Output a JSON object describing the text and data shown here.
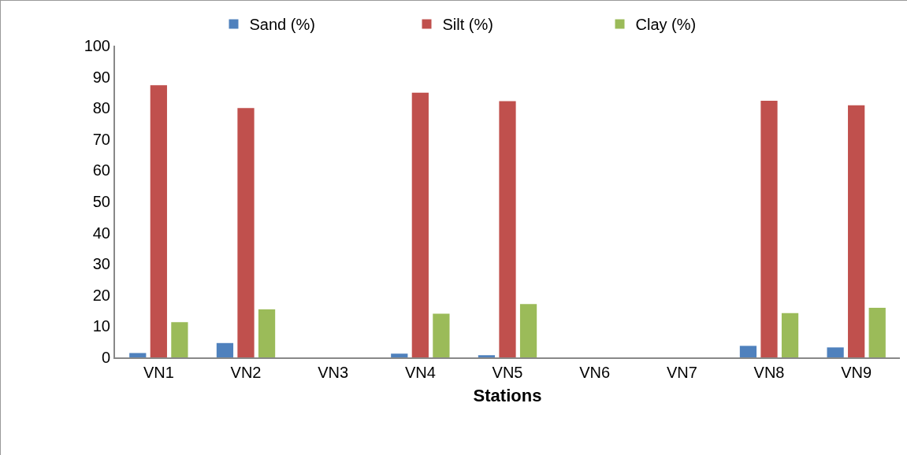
{
  "chart_data": {
    "type": "bar",
    "xlabel": "Stations",
    "categories": [
      "VN1",
      "VN2",
      "VN3",
      "VN4",
      "VN5",
      "VN6",
      "VN7",
      "VN8",
      "VN9"
    ],
    "series": [
      {
        "name": "Sand (%)",
        "color": "#4f81bd",
        "values": [
          1.4,
          4.6,
          null,
          1.2,
          0.7,
          null,
          null,
          3.7,
          3.2
        ]
      },
      {
        "name": "Silt (%)",
        "color": "#c0504d",
        "values": [
          87.3,
          80.0,
          null,
          84.9,
          82.2,
          null,
          null,
          82.3,
          80.9
        ]
      },
      {
        "name": "Clay (%)",
        "color": "#9bbb59",
        "values": [
          11.3,
          15.4,
          null,
          14.0,
          17.1,
          null,
          null,
          14.2,
          15.9
        ]
      }
    ],
    "ylim": [
      0,
      100
    ],
    "yticks": [
      0,
      10,
      20,
      30,
      40,
      50,
      60,
      70,
      80,
      90,
      100
    ],
    "grid": false,
    "legend": "top"
  }
}
